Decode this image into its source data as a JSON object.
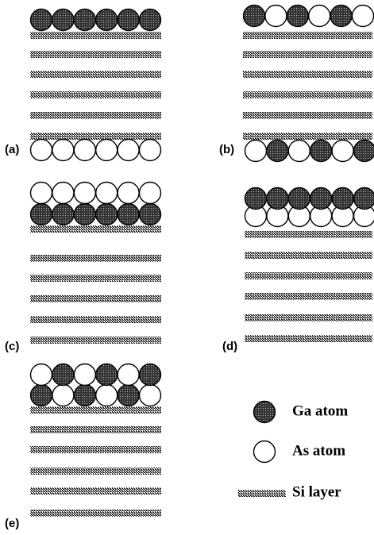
{
  "panels": [
    {
      "label": "(a)"
    },
    {
      "label": "(b)"
    },
    {
      "label": "(c)"
    },
    {
      "label": "(d)"
    },
    {
      "label": "(e)"
    }
  ],
  "legend": [
    {
      "label": "Ga atom"
    },
    {
      "label": "As atom"
    },
    {
      "label": "Si layer"
    }
  ]
}
